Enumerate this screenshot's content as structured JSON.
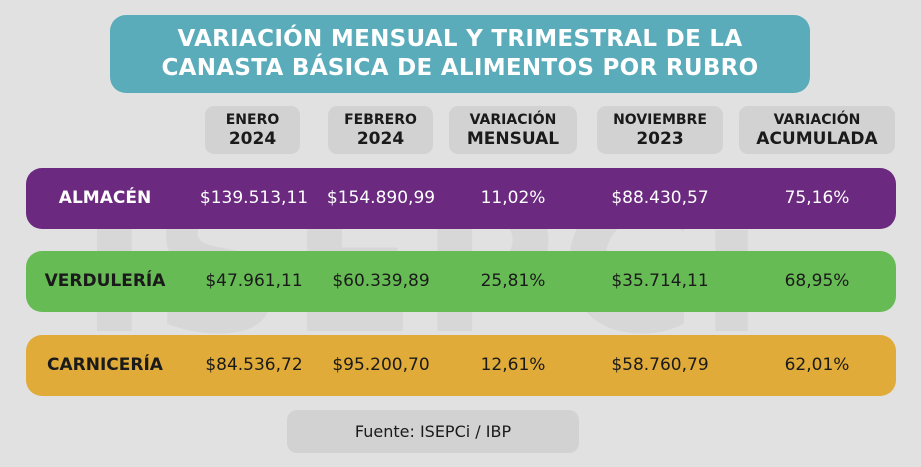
{
  "watermark": "ISEPCi",
  "title": {
    "line1": "VARIACIÓN MENSUAL Y TRIMESTRAL DE LA",
    "line2": "CANASTA BÁSICA DE ALIMENTOS POR RUBRO"
  },
  "colors": {
    "background": "#e1e1e1",
    "title": "#5aacbb",
    "almacen": "#6b2a80",
    "verduleria": "#67bb55",
    "carniceria": "#e0ab38"
  },
  "chart_data": {
    "type": "table",
    "title": "VARIACIÓN MENSUAL Y TRIMESTRAL DE LA CANASTA BÁSICA DE ALIMENTOS POR RUBRO",
    "columns": [
      {
        "l1": "ENERO",
        "l2": "2024"
      },
      {
        "l1": "FEBRERO",
        "l2": "2024"
      },
      {
        "l1": "VARIACIÓN",
        "l2": "MENSUAL"
      },
      {
        "l1": "NOVIEMBRE",
        "l2": "2023"
      },
      {
        "l1": "VARIACIÓN",
        "l2": "ACUMULADA"
      }
    ],
    "rows": [
      {
        "label": "ALMACÉN",
        "values": [
          "$139.513,11",
          "$154.890,99",
          "11,02%",
          "$88.430,57",
          "75,16%"
        ]
      },
      {
        "label": "VERDULERÍA",
        "values": [
          "$47.961,11",
          "$60.339,89",
          "25,81%",
          "$35.714,11",
          "68,95%"
        ]
      },
      {
        "label": "CARNICERÍA",
        "values": [
          "$84.536,72",
          "$95.200,70",
          "12,61%",
          "$58.760,79",
          "62,01%"
        ]
      }
    ]
  },
  "footer": "Fuente: ISEPCi / IBP"
}
